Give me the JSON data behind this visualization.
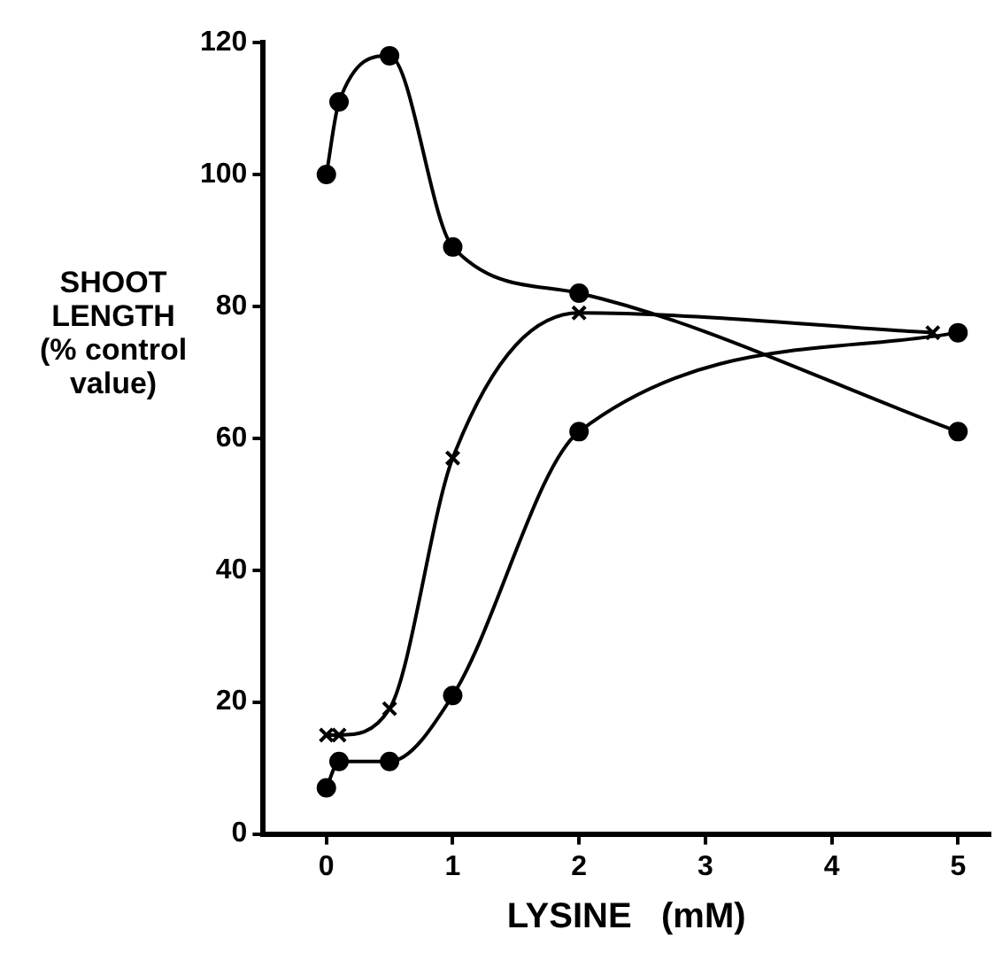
{
  "chart_data": {
    "type": "line",
    "xlabel": "LYSINE   (mM)",
    "ylabel": "SHOOT LENGTH (% control value)",
    "xlim": [
      -0.5,
      5.25
    ],
    "xticks": [
      0,
      1,
      2,
      3,
      4,
      5
    ],
    "ylim": [
      0,
      120
    ],
    "yticks": [
      0,
      20,
      40,
      60,
      80,
      100,
      120
    ],
    "grid": false,
    "legend": false,
    "series": [
      {
        "color": "#000000",
        "marker": "circle",
        "x": [
          0,
          0.1,
          0.5,
          1,
          2,
          5
        ],
        "values": [
          100,
          111,
          118,
          89,
          82,
          61
        ]
      },
      {
        "color": "#000000",
        "marker": "cross",
        "x": [
          0,
          0.1,
          0.5,
          1,
          2,
          4.8
        ],
        "values": [
          15,
          15,
          19,
          57,
          79,
          76
        ]
      },
      {
        "color": "#000000",
        "marker": "circle",
        "x": [
          0,
          0.1,
          0.5,
          1,
          2,
          5
        ],
        "values": [
          7,
          11,
          11,
          21,
          61,
          76
        ]
      }
    ]
  }
}
